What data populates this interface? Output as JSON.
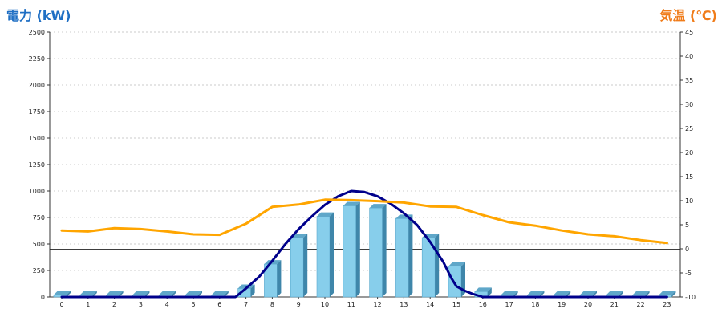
{
  "chart_data": {
    "type": "bar+line",
    "ylabel_left": "電力 (kW)",
    "ylabel_right": "気温 (℃)",
    "x": [
      0,
      1,
      2,
      3,
      4,
      5,
      6,
      7,
      8,
      9,
      10,
      11,
      12,
      13,
      14,
      15,
      16,
      17,
      18,
      19,
      20,
      21,
      22,
      23
    ],
    "x_ticks": [
      "0",
      "1",
      "2",
      "3",
      "4",
      "5",
      "6",
      "7",
      "8",
      "9",
      "10",
      "11",
      "12",
      "13",
      "14",
      "15",
      "16",
      "17",
      "18",
      "19",
      "20",
      "21",
      "22",
      "23"
    ],
    "y_left_ticks": [
      "0",
      "250",
      "500",
      "750",
      "1000",
      "1250",
      "1500",
      "1750",
      "2000",
      "2250",
      "2500"
    ],
    "y_right_ticks": [
      "-10",
      "-5",
      "0",
      "5",
      "10",
      "15",
      "20",
      "25",
      "30",
      "35",
      "40",
      "45"
    ],
    "ylim_left": [
      0,
      2500
    ],
    "ylim_right": [
      -10,
      45
    ],
    "grid": true,
    "reference_line_left": 450,
    "series": [
      {
        "kind": "bar",
        "axis": "left",
        "color": "#87ceeb",
        "values": [
          20,
          20,
          20,
          20,
          20,
          20,
          20,
          80,
          310,
          560,
          760,
          860,
          840,
          740,
          560,
          290,
          50,
          20,
          20,
          20,
          20,
          20,
          20,
          20
        ]
      },
      {
        "kind": "line",
        "axis": "left",
        "color": "#00008b",
        "x": [
          0,
          1,
          2,
          3,
          4,
          5,
          6,
          6.6,
          7,
          7.5,
          8,
          8.5,
          9,
          9.5,
          10,
          10.5,
          11,
          11.5,
          12,
          12.5,
          13,
          13.5,
          14,
          14.5,
          14.8,
          15,
          15.3,
          15.6,
          16,
          17,
          18,
          19,
          20,
          21,
          22,
          23
        ],
        "values": [
          0,
          0,
          0,
          0,
          0,
          0,
          0,
          0,
          80,
          190,
          340,
          500,
          640,
          760,
          870,
          950,
          1000,
          990,
          950,
          880,
          790,
          680,
          520,
          330,
          180,
          100,
          60,
          30,
          0,
          0,
          0,
          0,
          0,
          0,
          0,
          0
        ]
      },
      {
        "kind": "line",
        "axis": "right",
        "color": "#ffa500",
        "values": [
          3.8,
          3.6,
          4.3,
          4.1,
          3.6,
          3.0,
          2.9,
          5.2,
          8.7,
          9.2,
          10.2,
          10.1,
          9.9,
          9.6,
          8.8,
          8.7,
          7.0,
          5.5,
          4.8,
          3.8,
          3.0,
          2.6,
          1.8,
          1.2
        ]
      }
    ]
  }
}
